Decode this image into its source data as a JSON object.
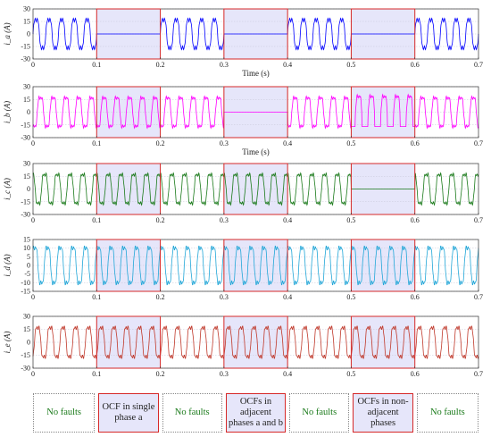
{
  "chart_data": [
    {
      "type": "line",
      "ylabel": "i_a (A)",
      "ylim": [
        -30,
        30
      ],
      "yticks": [
        -30,
        -15,
        0,
        15,
        30
      ],
      "xlim": [
        0,
        0.7
      ],
      "xticks": [
        "0",
        "0.1",
        "0.2",
        "0.3",
        "0.4",
        "0.5",
        "0.6",
        "0.7"
      ],
      "xlabel": "Time (s)",
      "series": [
        {
          "color": "#0000ff",
          "amplitude": 20,
          "phase_deg": 0,
          "zero_intervals": [
            [
              0.1,
              0.2
            ],
            [
              0.3,
              0.4
            ],
            [
              0.5,
              0.6
            ]
          ],
          "clip_intervals": []
        }
      ]
    },
    {
      "type": "line",
      "ylabel": "i_b (A)",
      "ylim": [
        -30,
        30
      ],
      "yticks": [
        -30,
        -15,
        0,
        15,
        30
      ],
      "xlim": [
        0,
        0.7
      ],
      "xticks": [
        "0",
        "0.1",
        "0.2",
        "0.3",
        "0.4",
        "0.5",
        "0.6",
        "0.7"
      ],
      "xlabel": "Time (s)",
      "series": [
        {
          "color": "#ff00ff",
          "amplitude": 20,
          "phase_deg": -120,
          "zero_intervals": [
            [
              0.3,
              0.4
            ]
          ],
          "clip_intervals": [
            [
              0.5,
              0.6
            ]
          ]
        }
      ]
    },
    {
      "type": "line",
      "ylabel": "i_c (A)",
      "ylim": [
        -30,
        30
      ],
      "yticks": [
        -30,
        -15,
        0,
        15,
        30
      ],
      "xlim": [
        0,
        0.7
      ],
      "xticks": [
        "0",
        "0.1",
        "0.2",
        "0.3",
        "0.4",
        "0.5",
        "0.6",
        "0.7"
      ],
      "xlabel": "",
      "series": [
        {
          "color": "#1a7a1a",
          "amplitude": 20,
          "phase_deg": 120,
          "zero_intervals": [
            [
              0.5,
              0.6
            ]
          ],
          "clip_intervals": []
        }
      ]
    },
    {
      "type": "line",
      "ylabel": "i_d (A)",
      "ylim": [
        -15,
        15
      ],
      "yticks": [
        -15,
        -10,
        -5,
        0,
        5,
        10,
        15
      ],
      "xlim": [
        0,
        0.7
      ],
      "xticks": [
        "0",
        "0.1",
        "0.2",
        "0.3",
        "0.4",
        "0.5",
        "0.6",
        "0.7"
      ],
      "xlabel": "",
      "series": [
        {
          "color": "#22a7d8",
          "amplitude": 12,
          "phase_deg": 40,
          "zero_intervals": [],
          "clip_intervals": []
        }
      ]
    },
    {
      "type": "line",
      "ylabel": "i_e (A)",
      "ylim": [
        -30,
        30
      ],
      "yticks": [
        -30,
        -15,
        0,
        15,
        30
      ],
      "xlim": [
        0,
        0.7
      ],
      "xticks": [
        "0",
        "0.1",
        "0.2",
        "0.3",
        "0.4",
        "0.5",
        "0.6",
        "0.7"
      ],
      "xlabel": "",
      "series": [
        {
          "color": "#c0392b",
          "amplitude": 20,
          "phase_deg": -40,
          "zero_intervals": [],
          "clip_intervals": []
        }
      ]
    }
  ],
  "fault_intervals": [
    [
      0.1,
      0.2
    ],
    [
      0.3,
      0.4
    ],
    [
      0.5,
      0.6
    ]
  ],
  "colors": {
    "fault_shade": "#e6e6fa",
    "fault_border": "#d62828",
    "nofault_text": "#1a7a1a"
  },
  "annotations": [
    {
      "kind": "nofault",
      "text": "No faults"
    },
    {
      "kind": "fault",
      "text": "OCF in single phase a"
    },
    {
      "kind": "nofault",
      "text": "No faults"
    },
    {
      "kind": "fault",
      "text": "OCFs in adjacent phases a and b"
    },
    {
      "kind": "nofault",
      "text": "No faults"
    },
    {
      "kind": "fault",
      "text": "OCFs in non-adjacent phases"
    },
    {
      "kind": "nofault",
      "text": "No faults"
    }
  ]
}
